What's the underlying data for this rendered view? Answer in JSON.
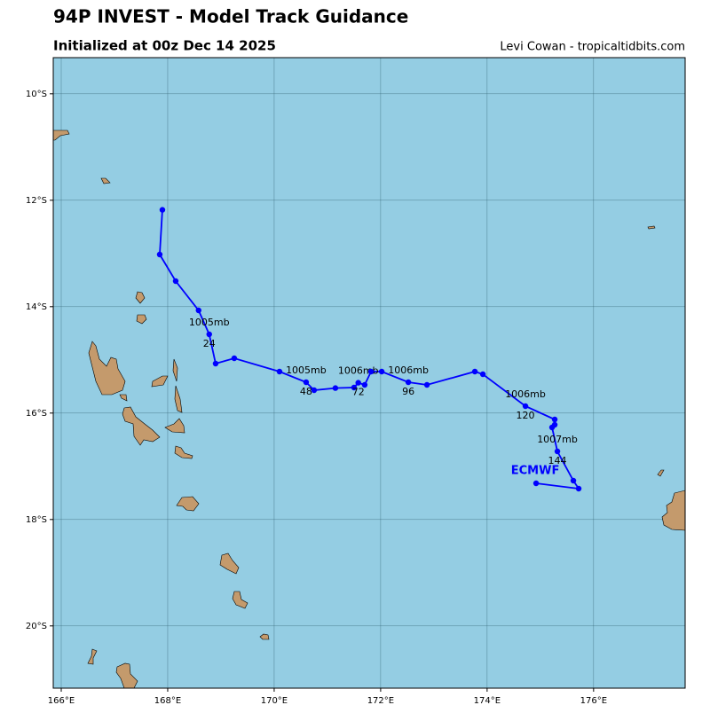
{
  "chart_data": {
    "type": "track",
    "title": "94P INVEST - Model Track Guidance",
    "subtitle": "Initialized at 00z Dec 14 2025",
    "credit": "Levi Cowan - tropicaltidbits.com",
    "xlim": [
      165.85,
      177.72
    ],
    "ylim": [
      -21.17,
      -9.32
    ],
    "xticks": [
      {
        "value": 166,
        "label": "166°E"
      },
      {
        "value": 168,
        "label": "168°E"
      },
      {
        "value": 170,
        "label": "170°E"
      },
      {
        "value": 172,
        "label": "172°E"
      },
      {
        "value": 174,
        "label": "174°E"
      },
      {
        "value": 176,
        "label": "176°E"
      }
    ],
    "yticks": [
      {
        "value": -10,
        "label": "10°S"
      },
      {
        "value": -12,
        "label": "12°S"
      },
      {
        "value": -14,
        "label": "14°S"
      },
      {
        "value": -16,
        "label": "16°S"
      },
      {
        "value": -18,
        "label": "18°S"
      },
      {
        "value": -20,
        "label": "20°S"
      }
    ],
    "grid": true,
    "series": [
      {
        "name": "ECMWF",
        "color": "#0000ff",
        "x": [
          167.9,
          167.85,
          168.15,
          168.58,
          168.78,
          168.9,
          169.25,
          170.1,
          170.6,
          170.75,
          171.15,
          171.5,
          171.58,
          171.7,
          171.82,
          172.02,
          172.52,
          172.87,
          173.77,
          173.92,
          174.72,
          175.27,
          175.27,
          175.22,
          175.32,
          175.62,
          175.72,
          174.92
        ],
        "values": [
          -12.18,
          -13.02,
          -13.52,
          -14.07,
          -14.52,
          -15.07,
          -14.97,
          -15.22,
          -15.42,
          -15.57,
          -15.53,
          -15.52,
          -15.43,
          -15.47,
          -15.22,
          -15.22,
          -15.42,
          -15.47,
          -15.22,
          -15.27,
          -15.87,
          -16.12,
          -16.22,
          -16.27,
          -16.72,
          -17.27,
          -17.42,
          -17.32
        ],
        "pressure_labels": [
          null,
          null,
          null,
          null,
          "1005mb",
          null,
          null,
          null,
          "1005mb",
          null,
          null,
          null,
          "1006mb",
          null,
          null,
          null,
          "1006mb",
          null,
          null,
          null,
          "1006mb",
          null,
          null,
          null,
          "1007mb",
          null,
          null,
          null
        ],
        "hour_labels": [
          null,
          null,
          null,
          null,
          "24",
          null,
          null,
          null,
          "48",
          null,
          null,
          null,
          "72",
          null,
          null,
          null,
          "96",
          null,
          null,
          null,
          "120",
          null,
          null,
          null,
          "144",
          null,
          null,
          null
        ]
      }
    ]
  }
}
